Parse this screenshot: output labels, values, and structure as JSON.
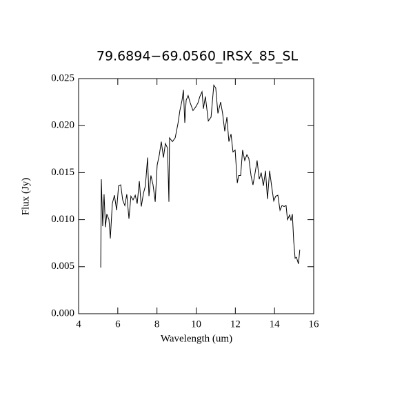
{
  "chart_data": {
    "type": "line",
    "title": "79.6894−69.0560_IRSX_85_SL",
    "x_label": "Wavelength (um)",
    "y_label": "Flux (Jy)",
    "xlim": [
      4,
      16
    ],
    "xticks": [
      4,
      6,
      8,
      10,
      12,
      14,
      16
    ],
    "ylim": [
      0,
      0.025
    ],
    "yticks": [
      {
        "value": 0,
        "label": "0.000"
      },
      {
        "value": 0.005,
        "label": "0.005"
      },
      {
        "value": 0.01,
        "label": "0.010"
      },
      {
        "value": 0.015,
        "label": "0.015"
      },
      {
        "value": 0.02,
        "label": "0.020"
      },
      {
        "value": 0.025,
        "label": "0.025"
      }
    ],
    "color": "#000000",
    "x": [
      5.13,
      5.16,
      5.23,
      5.3,
      5.37,
      5.44,
      5.55,
      5.62,
      5.72,
      5.83,
      5.94,
      6.04,
      6.15,
      6.25,
      6.36,
      6.46,
      6.57,
      6.67,
      6.78,
      6.89,
      6.99,
      7.1,
      7.2,
      7.31,
      7.41,
      7.52,
      7.59,
      7.69,
      7.8,
      7.91,
      8.01,
      8.12,
      8.22,
      8.33,
      8.43,
      8.54,
      8.61,
      8.64,
      8.79,
      8.93,
      9.07,
      9.17,
      9.28,
      9.35,
      9.42,
      9.49,
      9.59,
      9.7,
      9.84,
      9.98,
      10.09,
      10.19,
      10.3,
      10.37,
      10.47,
      10.62,
      10.76,
      10.9,
      11.0,
      11.11,
      11.25,
      11.35,
      11.46,
      11.57,
      11.67,
      11.78,
      11.88,
      11.99,
      12.1,
      12.17,
      12.27,
      12.37,
      12.48,
      12.59,
      12.69,
      12.8,
      12.9,
      13.01,
      13.11,
      13.22,
      13.32,
      13.43,
      13.54,
      13.64,
      13.75,
      13.85,
      13.96,
      14.06,
      14.17,
      14.28,
      14.38,
      14.49,
      14.59,
      14.66,
      14.77,
      14.84,
      14.91,
      14.98,
      15.05,
      15.12,
      15.22,
      15.29
    ],
    "values": [
      0.0049,
      0.0143,
      0.0093,
      0.0127,
      0.0092,
      0.0106,
      0.01,
      0.008,
      0.0117,
      0.0126,
      0.011,
      0.0136,
      0.0137,
      0.0121,
      0.0115,
      0.0127,
      0.0101,
      0.0125,
      0.0121,
      0.0126,
      0.0117,
      0.0141,
      0.0114,
      0.0128,
      0.0136,
      0.0166,
      0.0125,
      0.0147,
      0.0137,
      0.0119,
      0.0158,
      0.0169,
      0.0183,
      0.0166,
      0.0181,
      0.0176,
      0.0119,
      0.0187,
      0.0183,
      0.0187,
      0.0202,
      0.0216,
      0.0227,
      0.0238,
      0.0203,
      0.0227,
      0.0232,
      0.0224,
      0.0216,
      0.022,
      0.0224,
      0.0231,
      0.0236,
      0.0218,
      0.0231,
      0.0205,
      0.0209,
      0.0243,
      0.024,
      0.0213,
      0.0225,
      0.0213,
      0.0194,
      0.0209,
      0.0183,
      0.0191,
      0.0172,
      0.0174,
      0.0139,
      0.0147,
      0.0147,
      0.0174,
      0.0163,
      0.0169,
      0.0165,
      0.0147,
      0.0137,
      0.015,
      0.0163,
      0.0143,
      0.015,
      0.0136,
      0.0152,
      0.0122,
      0.0152,
      0.0136,
      0.012,
      0.0125,
      0.0126,
      0.011,
      0.0115,
      0.0114,
      0.0115,
      0.01,
      0.0105,
      0.0099,
      0.0106,
      0.0077,
      0.0059,
      0.006,
      0.0053,
      0.0068
    ]
  }
}
